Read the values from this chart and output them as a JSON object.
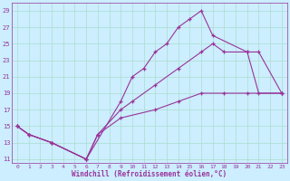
{
  "xlabel": "Windchill (Refroidissement éolien,°C)",
  "bg_color": "#cceeff",
  "grid_color": "#aaddcc",
  "line_color": "#993399",
  "xlim": [
    -0.5,
    23.5
  ],
  "ylim": [
    10.5,
    30
  ],
  "yticks": [
    11,
    13,
    15,
    17,
    19,
    21,
    23,
    25,
    27,
    29
  ],
  "xticks": [
    0,
    1,
    2,
    3,
    4,
    5,
    6,
    7,
    8,
    9,
    10,
    11,
    12,
    13,
    14,
    15,
    16,
    17,
    18,
    19,
    20,
    21,
    22,
    23
  ],
  "series1_x": [
    0,
    1,
    3,
    6,
    9,
    10,
    11,
    12,
    13,
    14,
    15,
    16,
    17,
    20,
    21,
    23
  ],
  "series1_y": [
    15,
    14,
    13,
    11,
    18,
    21,
    22,
    24,
    25,
    27,
    28,
    29,
    26,
    24,
    19,
    19
  ],
  "series2_x": [
    0,
    1,
    3,
    6,
    7,
    9,
    10,
    12,
    14,
    16,
    17,
    18,
    20,
    21,
    23
  ],
  "series2_y": [
    15,
    14,
    13,
    11,
    14,
    17,
    18,
    20,
    22,
    24,
    25,
    24,
    24,
    24,
    19
  ],
  "series3_x": [
    0,
    1,
    3,
    6,
    7,
    9,
    12,
    14,
    16,
    18,
    20,
    23
  ],
  "series3_y": [
    15,
    14,
    13,
    11,
    14,
    16,
    17,
    18,
    19,
    19,
    19,
    19
  ]
}
